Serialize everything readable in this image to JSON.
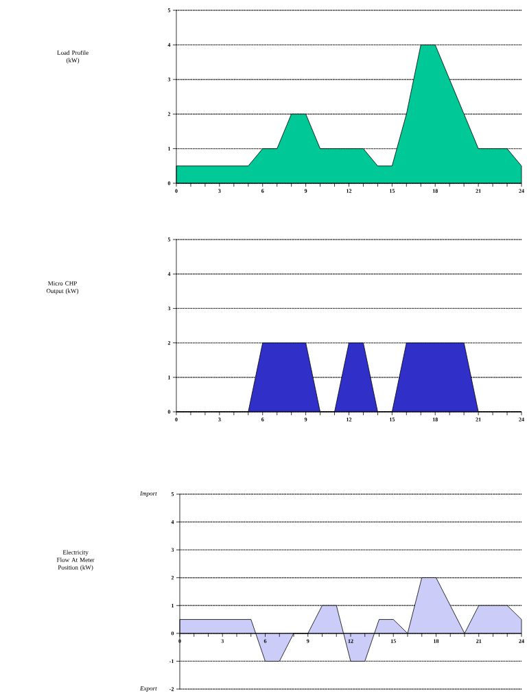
{
  "chart_data": [
    {
      "type": "area",
      "ylabel": "Load Profile (kW)",
      "x": [
        0,
        1,
        2,
        3,
        4,
        5,
        6,
        7,
        8,
        9,
        10,
        11,
        12,
        13,
        14,
        15,
        16,
        17,
        18,
        19,
        20,
        21,
        22,
        23,
        24
      ],
      "values": [
        0.5,
        0.5,
        0.5,
        0.5,
        0.5,
        0.5,
        1,
        1,
        2,
        2,
        1,
        1,
        1,
        1,
        0.5,
        0.5,
        2,
        4,
        4,
        3,
        2,
        1,
        1,
        1,
        0.5
      ],
      "color": "#00c896",
      "xlim": [
        0,
        24
      ],
      "ylim": [
        0,
        5
      ],
      "xticks": [
        0,
        3,
        6,
        9,
        12,
        15,
        18,
        21,
        24
      ],
      "yticks": [
        0,
        1,
        2,
        3,
        4,
        5
      ],
      "grid": "y",
      "line_style": "solid"
    },
    {
      "type": "area",
      "ylabel": "Micro CHP Output (kW)",
      "x": [
        0,
        1,
        2,
        3,
        4,
        5,
        6,
        7,
        8,
        9,
        10,
        11,
        12,
        13,
        14,
        15,
        16,
        17,
        18,
        19,
        20,
        21,
        22,
        23,
        24
      ],
      "values": [
        0,
        0,
        0,
        0,
        0,
        0,
        2,
        2,
        2,
        2,
        0,
        0,
        2,
        2,
        0,
        0,
        2,
        2,
        2,
        2,
        2,
        0,
        0,
        0,
        0
      ],
      "color": "#3030c8",
      "xlim": [
        0,
        24
      ],
      "ylim": [
        0,
        5
      ],
      "xticks": [
        0,
        3,
        6,
        9,
        12,
        15,
        18,
        21,
        24
      ],
      "yticks": [
        0,
        1,
        2,
        3,
        4,
        5
      ],
      "grid": "y",
      "line_style": "solid"
    },
    {
      "type": "area",
      "ylabel": "Electricity Flow At Meter Position (kW)",
      "x": [
        0,
        1,
        2,
        3,
        4,
        5,
        6,
        7,
        8,
        9,
        10,
        11,
        12,
        13,
        14,
        15,
        16,
        17,
        18,
        19,
        20,
        21,
        22,
        23,
        24
      ],
      "values": [
        0.5,
        0.5,
        0.5,
        0.5,
        0.5,
        0.5,
        -1,
        -1,
        0,
        0,
        1,
        1,
        -1,
        -1,
        0.5,
        0.5,
        0,
        2,
        2,
        1,
        0,
        1,
        1,
        1,
        0.5
      ],
      "color": "#ccccf8",
      "xlim": [
        0,
        24
      ],
      "ylim": [
        -2,
        5
      ],
      "xticks": [
        0,
        3,
        6,
        9,
        12,
        15,
        18,
        21,
        24
      ],
      "yticks": [
        -2,
        -1,
        0,
        1,
        2,
        3,
        4,
        5
      ],
      "grid": "y",
      "line_style": "solid",
      "annotations": [
        "Import",
        "Export"
      ]
    }
  ]
}
